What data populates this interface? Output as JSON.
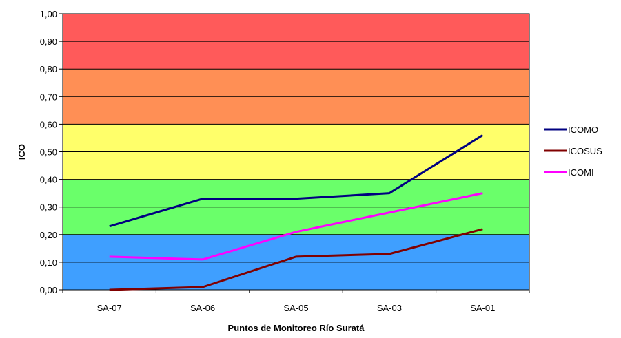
{
  "chart_data": {
    "type": "line",
    "title": "",
    "xlabel": "Puntos de Monitoreo Río Suratá",
    "ylabel": "ICO",
    "categories": [
      "SA-07",
      "SA-06",
      "SA-05",
      "SA-03",
      "SA-01"
    ],
    "ylim": [
      0,
      1
    ],
    "yticks": [
      "0,00",
      "0,10",
      "0,20",
      "0,30",
      "0,40",
      "0,50",
      "0,60",
      "0,70",
      "0,80",
      "0,90",
      "1,00"
    ],
    "grid": true,
    "legend_position": "right",
    "bands": [
      {
        "from": 0.0,
        "to": 0.2,
        "color": "#3f9fff"
      },
      {
        "from": 0.2,
        "to": 0.4,
        "color": "#6aff6a"
      },
      {
        "from": 0.4,
        "to": 0.6,
        "color": "#ffff6a"
      },
      {
        "from": 0.6,
        "to": 0.8,
        "color": "#ff8f55"
      },
      {
        "from": 0.8,
        "to": 1.0,
        "color": "#ff5a5a"
      }
    ],
    "series": [
      {
        "name": "ICOMO",
        "color": "#000080",
        "values": [
          0.23,
          0.33,
          0.33,
          0.35,
          0.56
        ]
      },
      {
        "name": "ICOSUS",
        "color": "#800000",
        "values": [
          0.0,
          0.01,
          0.12,
          0.13,
          0.22
        ]
      },
      {
        "name": "ICOMI",
        "color": "#ff00ff",
        "values": [
          0.12,
          0.11,
          0.21,
          0.28,
          0.35
        ]
      }
    ]
  }
}
